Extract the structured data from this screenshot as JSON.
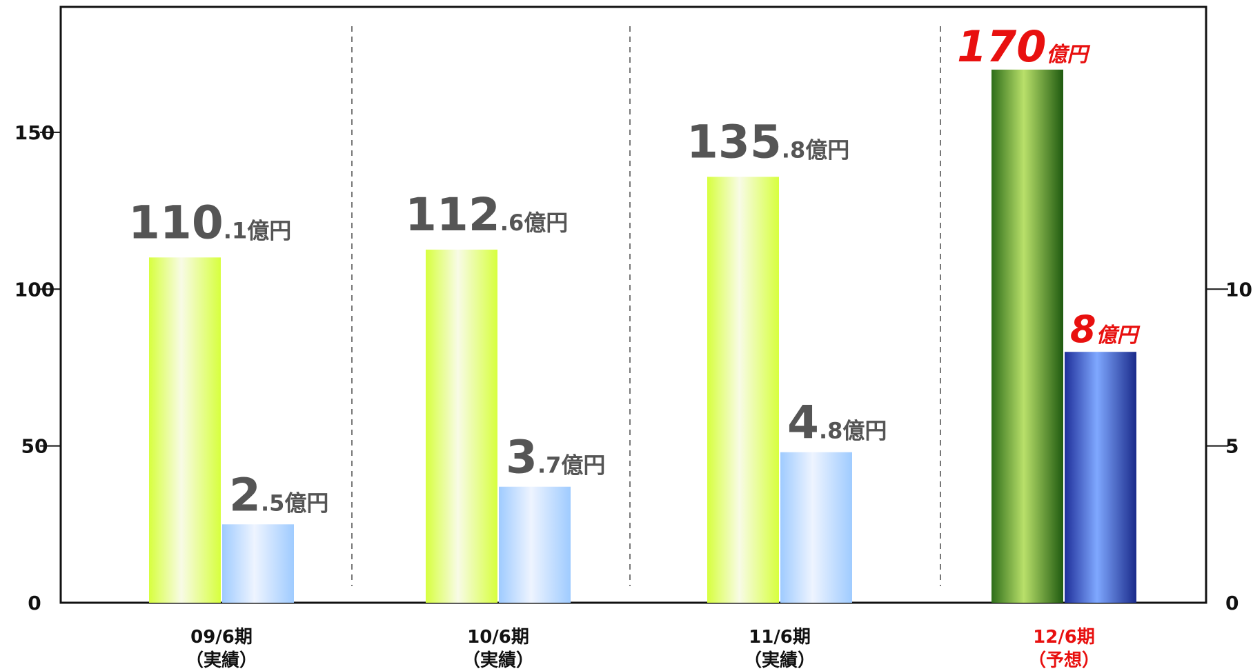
{
  "chart_data": {
    "type": "bar",
    "categories": [
      "09/6期\n（実績）",
      "10/6期\n（実績）",
      "11/6期\n（実績）",
      "12/6期\n（予想）"
    ],
    "category_lines": [
      [
        "09/6期",
        "（実績）"
      ],
      [
        "10/6期",
        "（実績）"
      ],
      [
        "11/6期",
        "（実績）"
      ],
      [
        "12/6期",
        "（予想）"
      ]
    ],
    "forecast_index": 3,
    "series": [
      {
        "axis": "left",
        "values": [
          110.1,
          112.6,
          135.8,
          170
        ],
        "labels": [
          {
            "main": "110",
            "sub": ".1億円"
          },
          {
            "main": "112",
            "sub": ".6億円"
          },
          {
            "main": "135",
            "sub": ".8億円"
          },
          {
            "main": "170",
            "sub": "億円"
          }
        ],
        "colors": {
          "actual": "#d7ff3e",
          "forecast": "#2e6e1a"
        }
      },
      {
        "axis": "right",
        "values": [
          2.5,
          3.7,
          4.8,
          8
        ],
        "labels": [
          {
            "main": "2",
            "sub": ".5億円"
          },
          {
            "main": "3",
            "sub": ".7億円"
          },
          {
            "main": "4",
            "sub": ".8億円"
          },
          {
            "main": "8",
            "sub": "億円"
          }
        ],
        "colors": {
          "actual": "#9fcbff",
          "forecast": "#1f2f9a"
        }
      }
    ],
    "y_left": {
      "ticks": [
        0,
        50,
        100,
        150
      ],
      "range": [
        0,
        190
      ]
    },
    "y_right": {
      "ticks": [
        0,
        5,
        10
      ],
      "range": [
        0,
        19
      ]
    },
    "grid": false,
    "accent_color": "#e8100f"
  }
}
